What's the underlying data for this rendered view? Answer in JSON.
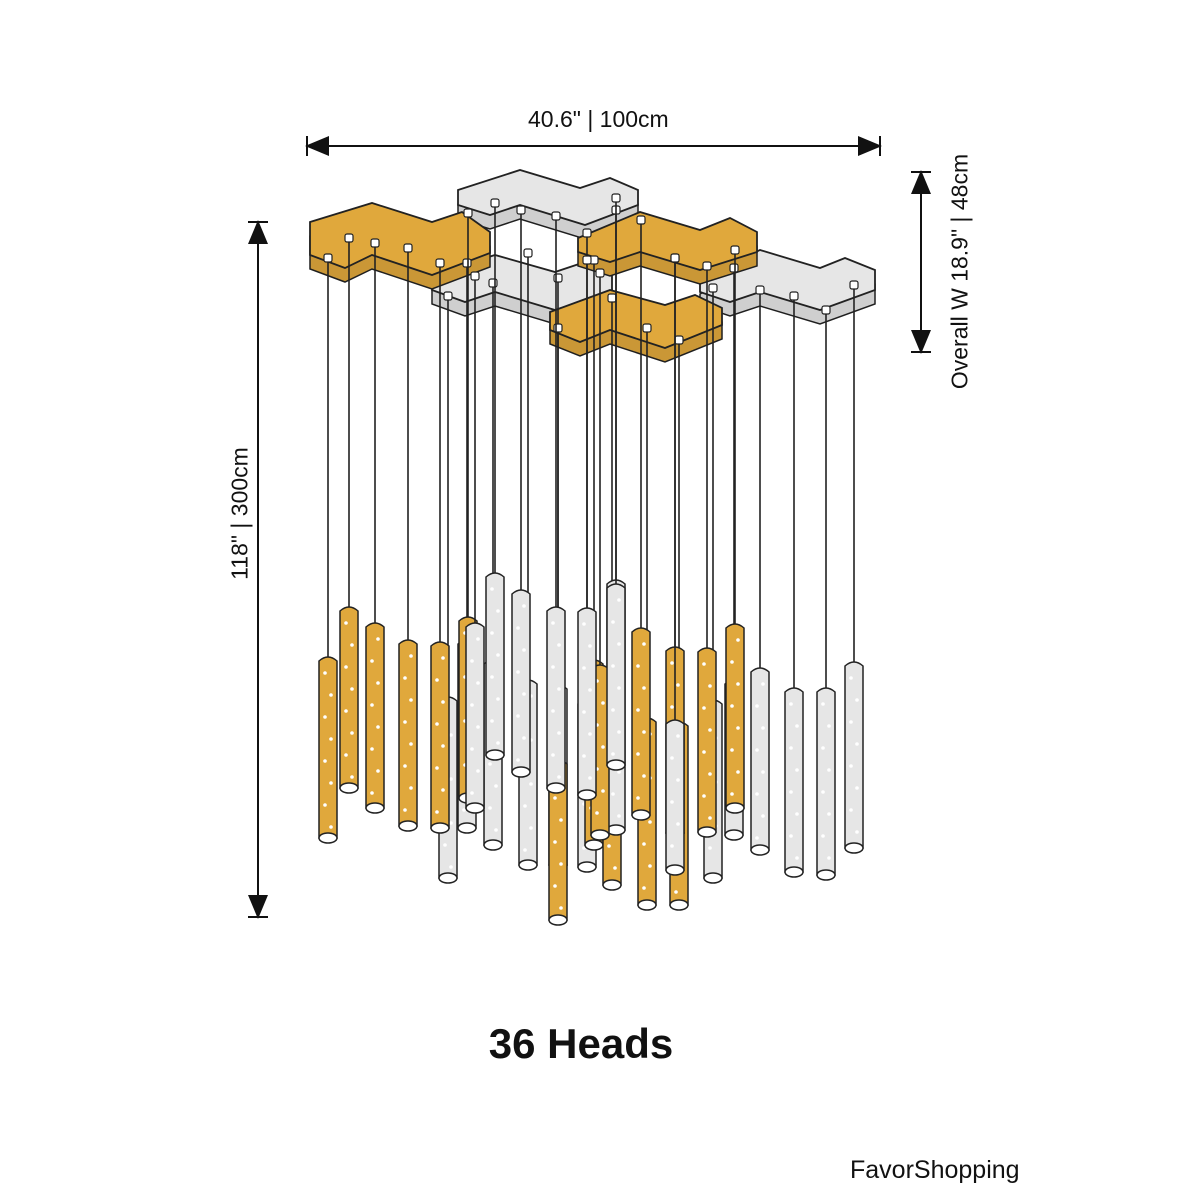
{
  "dimensions": {
    "width_label": "40.6\" | 100cm",
    "height_label": "118\" | 300cm",
    "depth_label": "Overall W 18.9\" | 48cm"
  },
  "caption": "36 Heads",
  "brand": "FavorShopping",
  "product": {
    "head_count": 36
  },
  "colors": {
    "gold": "#E0A83C",
    "silver": "#E6E6E6",
    "line": "#222222"
  }
}
